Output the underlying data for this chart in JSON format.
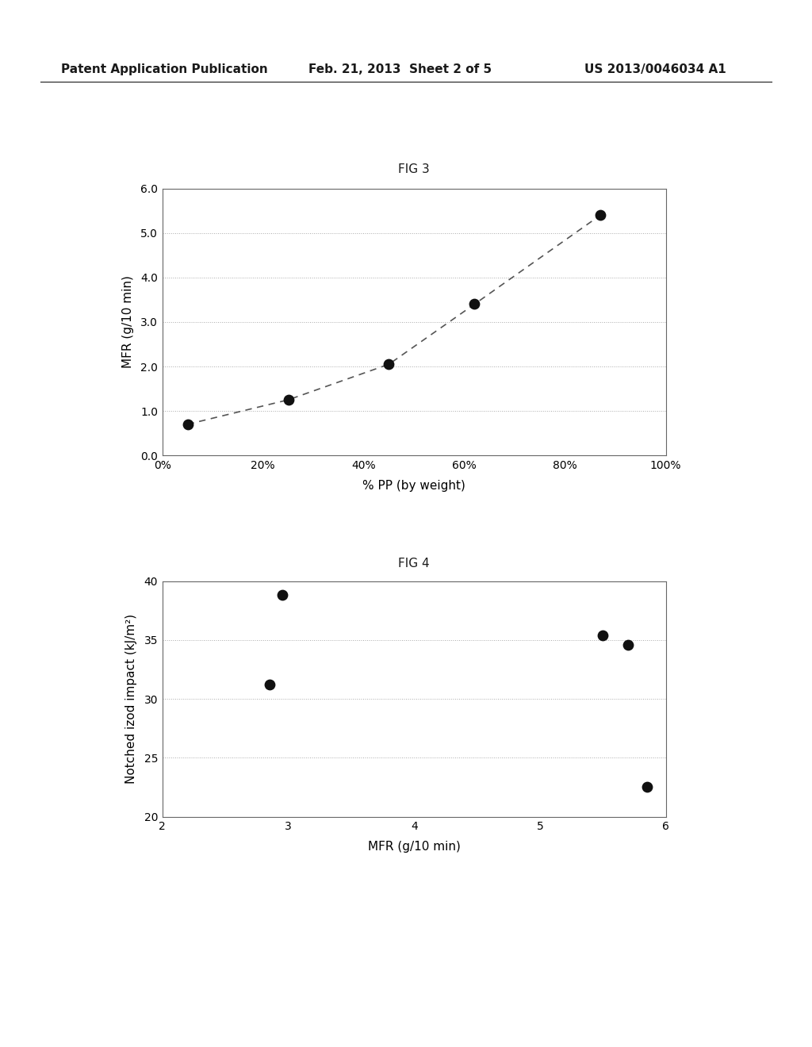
{
  "fig3": {
    "title": "FIG 3",
    "x": [
      0.05,
      0.25,
      0.45,
      0.62,
      0.87
    ],
    "y": [
      0.7,
      1.25,
      2.05,
      3.4,
      5.4
    ],
    "xlabel": "% PP (by weight)",
    "ylabel": "MFR (g/10 min)",
    "xlim": [
      0.0,
      1.0
    ],
    "ylim": [
      0.0,
      6.0
    ],
    "xticks": [
      0.0,
      0.2,
      0.4,
      0.6,
      0.8,
      1.0
    ],
    "xticklabels": [
      "0%",
      "20%",
      "40%",
      "60%",
      "80%",
      "100%"
    ],
    "yticks": [
      0.0,
      1.0,
      2.0,
      3.0,
      4.0,
      5.0,
      6.0
    ],
    "yticklabels": [
      "0.0",
      "1.0",
      "2.0",
      "3.0",
      "4.0",
      "5.0",
      "6.0"
    ]
  },
  "fig4": {
    "title": "FIG 4",
    "x": [
      2.85,
      2.95,
      5.5,
      5.7,
      5.85
    ],
    "y": [
      31.2,
      38.8,
      35.4,
      34.6,
      22.5
    ],
    "xlabel": "MFR (g/10 min)",
    "ylabel": "Notched izod impact (kJ/m²)",
    "xlim": [
      2,
      6
    ],
    "ylim": [
      20,
      40
    ],
    "xticks": [
      2,
      3,
      4,
      5,
      6
    ],
    "xticklabels": [
      "2",
      "3",
      "4",
      "5",
      "6"
    ],
    "yticks": [
      20,
      25,
      30,
      35,
      40
    ],
    "yticklabels": [
      "20",
      "25",
      "30",
      "35",
      "40"
    ]
  },
  "header_left": "Patent Application Publication",
  "header_center": "Feb. 21, 2013  Sheet 2 of 5",
  "header_right": "US 2013/0046034 A1",
  "background_color": "#ffffff",
  "text_color": "#1a1a1a",
  "marker_color": "#111111",
  "line_color": "#555555",
  "grid_color": "#aaaaaa",
  "axis_color": "#666666",
  "header_fontsize": 11,
  "title_fontsize": 11,
  "tick_fontsize": 10,
  "label_fontsize": 11
}
